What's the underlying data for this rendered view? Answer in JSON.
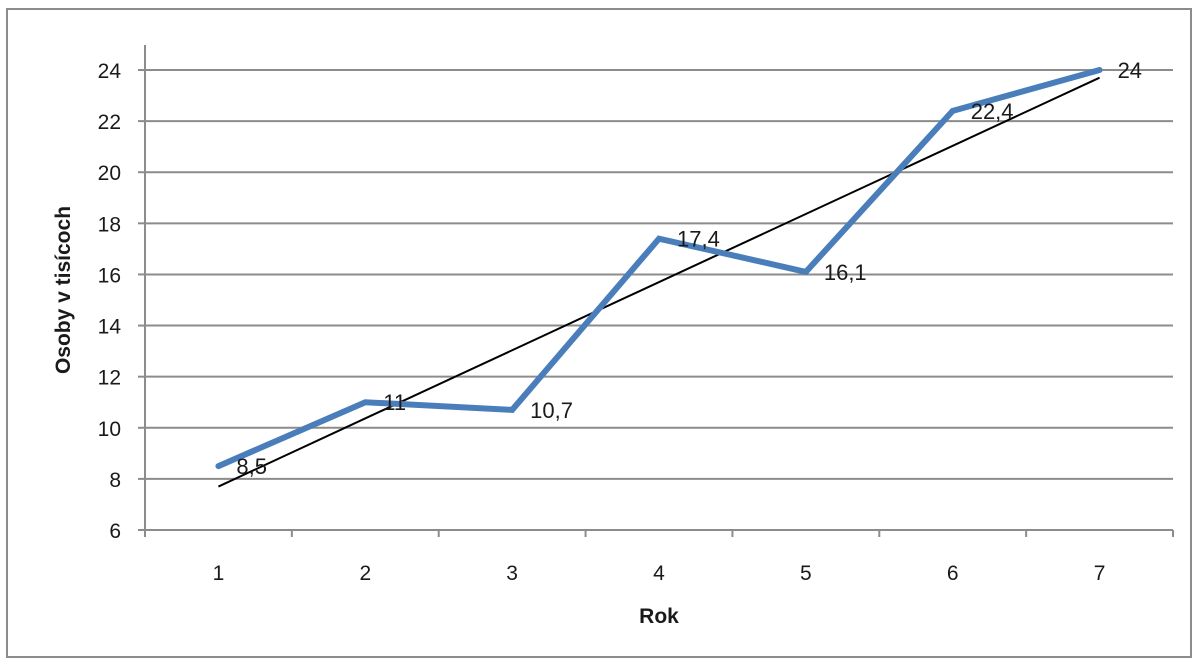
{
  "chart_data": {
    "type": "line",
    "xlabel": "Rok",
    "ylabel": "Osoby v tisícoch",
    "x": [
      1,
      2,
      3,
      4,
      5,
      6,
      7
    ],
    "ylim": [
      6,
      24
    ],
    "yticks": [
      6,
      8,
      10,
      12,
      14,
      16,
      18,
      20,
      22,
      24
    ],
    "grid": true,
    "legend": "none",
    "series": [
      {
        "values": [
          8.5,
          11,
          10.7,
          17.4,
          16.1,
          22.4,
          24
        ],
        "data_labels": [
          "8,5",
          "11",
          "10,7",
          "17,4",
          "16,1",
          "22,4",
          "24"
        ],
        "color": "#4a7ebb"
      }
    ],
    "trendline": {
      "type": "linear",
      "start": [
        1,
        7.7
      ],
      "end": [
        7,
        23.7
      ],
      "color": "#000000"
    }
  }
}
